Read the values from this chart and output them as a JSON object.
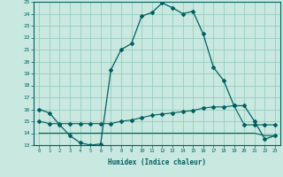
{
  "xlabel": "Humidex (Indice chaleur)",
  "xlim": [
    -0.5,
    23.5
  ],
  "ylim": [
    13,
    25
  ],
  "yticks": [
    13,
    14,
    15,
    16,
    17,
    18,
    19,
    20,
    21,
    22,
    23,
    24,
    25
  ],
  "xticks": [
    0,
    1,
    2,
    3,
    4,
    5,
    6,
    7,
    8,
    9,
    10,
    11,
    12,
    13,
    14,
    15,
    16,
    17,
    18,
    19,
    20,
    21,
    22,
    23
  ],
  "bg_color": "#c8e8e0",
  "line_color": "#006060",
  "grid_color": "#90c8b8",
  "line1_x": [
    0,
    1,
    2,
    3,
    4,
    5,
    6,
    7,
    8,
    9,
    10,
    11,
    12,
    13,
    14,
    15,
    16,
    17,
    18,
    19,
    20,
    21,
    22,
    23
  ],
  "line1_y": [
    16.0,
    15.7,
    14.7,
    13.8,
    13.2,
    13.0,
    13.1,
    19.3,
    21.0,
    21.5,
    23.8,
    24.1,
    24.9,
    24.5,
    24.0,
    24.2,
    22.3,
    19.5,
    18.4,
    16.3,
    16.3,
    15.0,
    13.5,
    13.8
  ],
  "line2_x": [
    0,
    1,
    2,
    3,
    4,
    5,
    6,
    7,
    8,
    9,
    10,
    11,
    12,
    13,
    14,
    15,
    16,
    17,
    18,
    19,
    20,
    21,
    22,
    23
  ],
  "line2_y": [
    15.0,
    14.8,
    14.8,
    14.8,
    14.8,
    14.8,
    14.8,
    14.8,
    15.0,
    15.1,
    15.3,
    15.5,
    15.6,
    15.7,
    15.8,
    15.9,
    16.1,
    16.2,
    16.2,
    16.3,
    14.7,
    14.7,
    14.7,
    14.7
  ],
  "line3_x": [
    0,
    1,
    2,
    3,
    4,
    5,
    6,
    7,
    8,
    9,
    10,
    11,
    12,
    13,
    14,
    15,
    16,
    17,
    18,
    19,
    20,
    21,
    22,
    23
  ],
  "line3_y": [
    14.0,
    14.0,
    14.0,
    14.0,
    14.0,
    14.0,
    14.0,
    14.0,
    14.0,
    14.0,
    14.0,
    14.0,
    14.0,
    14.0,
    14.0,
    14.0,
    14.0,
    14.0,
    14.0,
    14.0,
    14.0,
    14.0,
    13.8,
    13.8
  ]
}
